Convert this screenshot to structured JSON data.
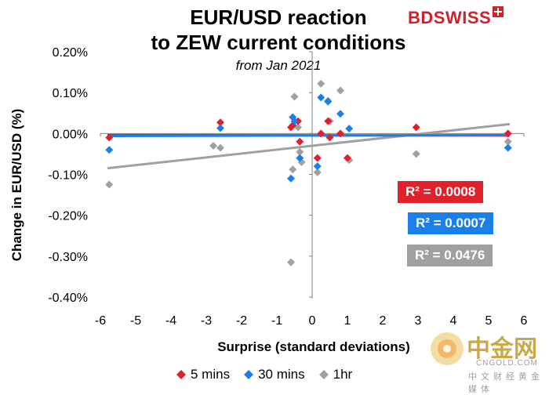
{
  "title_line1": "EUR/USD reaction",
  "title_line2": "to ZEW current conditions",
  "subtitle": "from Jan 2021",
  "brand": "BDSWISS",
  "watermark": {
    "cn": "中金网",
    "en": "CNGOLD.COM",
    "sub": "中文财经黄金媒体"
  },
  "colors": {
    "5mins": "#e0202a",
    "30mins": "#1a7fe8",
    "1hr": "#a0a0a0"
  },
  "r2_labels": [
    {
      "text": "R² = 0.0008",
      "color": "#e0202a"
    },
    {
      "text": "R² = 0.0007",
      "color": "#1a7fe8"
    },
    {
      "text": "R² = 0.0476",
      "color": "#a0a0a0"
    }
  ],
  "chart_data": {
    "type": "scatter",
    "title": "EUR/USD reaction to ZEW current conditions",
    "subtitle": "from Jan 2021",
    "xlabel": "Surprise (standard deviations)",
    "ylabel": "Change in EUR/USD (%)",
    "xlim": [
      -6,
      6
    ],
    "ylim": [
      -0.4,
      0.2
    ],
    "xticks": [
      -6,
      -5,
      -4,
      -3,
      -2,
      -1,
      0,
      1,
      2,
      3,
      4,
      5,
      6
    ],
    "yticks": [
      "-0.40%",
      "-0.30%",
      "-0.20%",
      "-0.10%",
      "0.00%",
      "0.10%",
      "0.20%"
    ],
    "ytick_values": [
      -0.4,
      -0.3,
      -0.2,
      -0.1,
      0.0,
      0.1,
      0.2
    ],
    "grid": false,
    "legend": "bottom",
    "series": [
      {
        "name": "5 mins",
        "color": "#e0202a",
        "trendline": [
          [
            -5.8,
            -0.004
          ],
          [
            5.6,
            -0.005
          ]
        ],
        "points": [
          [
            -5.75,
            -0.01
          ],
          [
            -2.6,
            0.027
          ],
          [
            -0.6,
            0.015
          ],
          [
            -0.55,
            0.02
          ],
          [
            -0.4,
            0.03
          ],
          [
            -0.35,
            -0.02
          ],
          [
            0.15,
            -0.06
          ],
          [
            0.25,
            0.0
          ],
          [
            0.45,
            0.03
          ],
          [
            0.5,
            -0.01
          ],
          [
            0.8,
            0.0
          ],
          [
            1.0,
            -0.06
          ],
          [
            2.95,
            0.015
          ],
          [
            5.55,
            0.0
          ]
        ]
      },
      {
        "name": "30 mins",
        "color": "#1a7fe8",
        "trendline": [
          [
            -5.8,
            -0.006
          ],
          [
            5.6,
            -0.004
          ]
        ],
        "points": [
          [
            -5.75,
            -0.04
          ],
          [
            -2.6,
            0.013
          ],
          [
            -0.6,
            -0.11
          ],
          [
            -0.55,
            0.04
          ],
          [
            -0.5,
            0.03
          ],
          [
            -0.35,
            -0.06
          ],
          [
            0.15,
            -0.08
          ],
          [
            0.25,
            0.088
          ],
          [
            0.45,
            0.078
          ],
          [
            0.8,
            0.048
          ],
          [
            1.05,
            0.012
          ],
          [
            5.55,
            -0.035
          ]
        ]
      },
      {
        "name": "1hr",
        "color": "#a0a0a0",
        "trendline": [
          [
            -5.8,
            -0.085
          ],
          [
            5.6,
            0.023
          ]
        ],
        "points": [
          [
            -5.75,
            -0.125
          ],
          [
            -2.8,
            -0.03
          ],
          [
            -2.6,
            -0.035
          ],
          [
            -0.6,
            -0.315
          ],
          [
            -0.55,
            -0.088
          ],
          [
            -0.5,
            0.09
          ],
          [
            -0.4,
            0.015
          ],
          [
            -0.35,
            -0.045
          ],
          [
            -0.3,
            -0.07
          ],
          [
            0.15,
            -0.095
          ],
          [
            0.25,
            0.122
          ],
          [
            0.5,
            0.03
          ],
          [
            0.45,
            0.08
          ],
          [
            0.8,
            0.105
          ],
          [
            1.05,
            -0.065
          ],
          [
            2.95,
            -0.05
          ],
          [
            5.55,
            -0.02
          ]
        ]
      }
    ]
  }
}
